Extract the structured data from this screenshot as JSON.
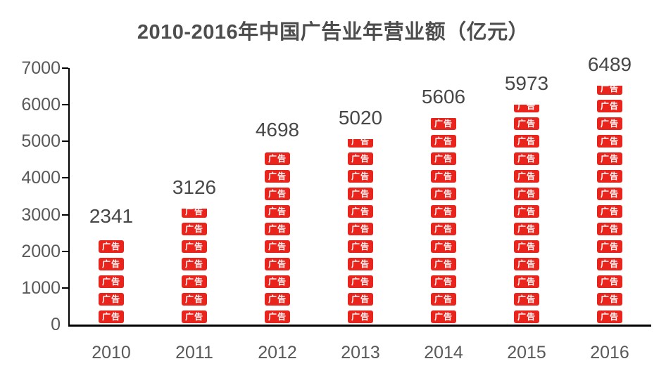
{
  "title": "2010-2016年中国广告业年营业额（亿元）",
  "colors": {
    "bar_red": "#e8241c",
    "block_text": "#ffffff",
    "axis_black": "#000000",
    "tick_label_gray": "#595959",
    "value_label_gray": "#474747",
    "title_gray": "#4d4d4d",
    "background": "#ffffff"
  },
  "chart_data": {
    "type": "bar",
    "title": "2010-2016年中国广告业年营业额（亿元）",
    "categories": [
      "2010",
      "2011",
      "2012",
      "2013",
      "2014",
      "2015",
      "2016"
    ],
    "values": [
      2341,
      3126,
      4698,
      5020,
      5606,
      5973,
      6489
    ],
    "data_labels": [
      "2341",
      "3126",
      "4698",
      "5020",
      "5606",
      "5973",
      "6489"
    ],
    "unit": "亿元",
    "xlabel": "",
    "ylabel": "",
    "ylim": [
      0,
      7000
    ],
    "yticks": [
      0,
      1000,
      2000,
      3000,
      4000,
      5000,
      6000,
      7000
    ],
    "ytick_labels": [
      "0",
      "1000",
      "2000",
      "3000",
      "4000",
      "5000",
      "6000",
      "7000"
    ],
    "grid": false,
    "legend_position": "none",
    "bar_style": "stacked-ad-blocks",
    "bar_block_label": "广告",
    "blocks_per_bar": [
      5,
      7,
      10,
      11,
      12,
      13,
      14
    ]
  }
}
